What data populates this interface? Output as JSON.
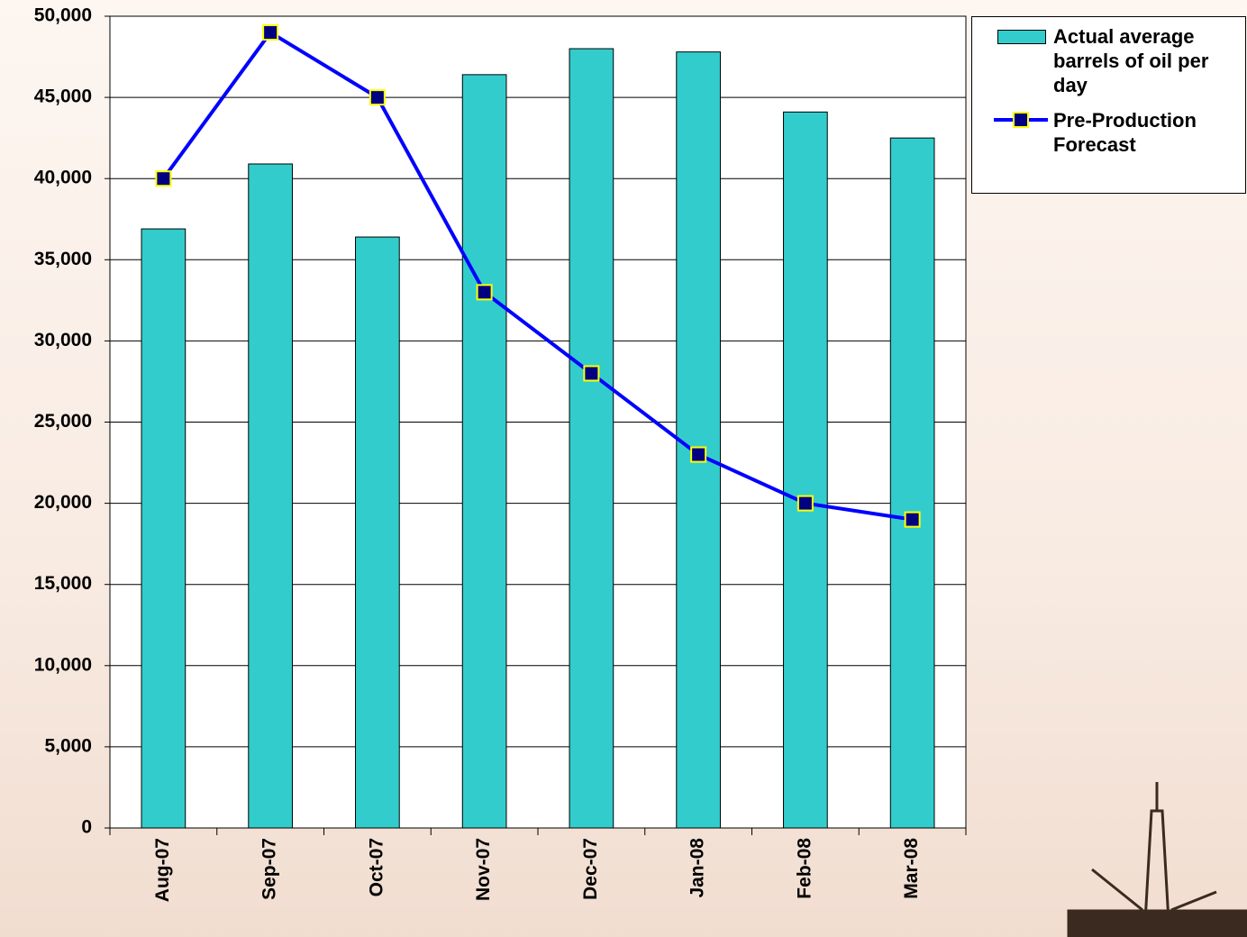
{
  "chart_data": {
    "type": "bar",
    "categories": [
      "Aug-07",
      "Sep-07",
      "Oct-07",
      "Nov-07",
      "Dec-07",
      "Jan-08",
      "Feb-08",
      "Mar-08"
    ],
    "series": [
      {
        "name": "Actual average barrels of oil per day",
        "type": "bar",
        "color": "#33cccc",
        "values": [
          36900,
          40900,
          36400,
          46400,
          48000,
          47800,
          44100,
          42500
        ]
      },
      {
        "name": "Pre-Production Forecast",
        "type": "line",
        "color": "#0000ff",
        "marker_color": "#000080",
        "values": [
          40000,
          49000,
          45000,
          33000,
          28000,
          23000,
          20000,
          19000
        ]
      }
    ],
    "ylim": [
      0,
      50000
    ],
    "yticks": [
      0,
      {
        "value": 5000,
        "label": "5,000"
      },
      {
        "value": 10000,
        "label": "10,000"
      },
      {
        "value": 15000,
        "label": "15,000"
      },
      {
        "value": 20000,
        "label": "20,000"
      },
      {
        "value": 25000,
        "label": "25,000"
      },
      {
        "value": 30000,
        "label": "30,000"
      },
      {
        "value": 35000,
        "label": "35,000"
      },
      {
        "value": 40000,
        "label": "40,000"
      },
      {
        "value": 45000,
        "label": "45,000"
      },
      {
        "value": 50000,
        "label": "50,000"
      }
    ],
    "grid": true,
    "legend": "right"
  }
}
